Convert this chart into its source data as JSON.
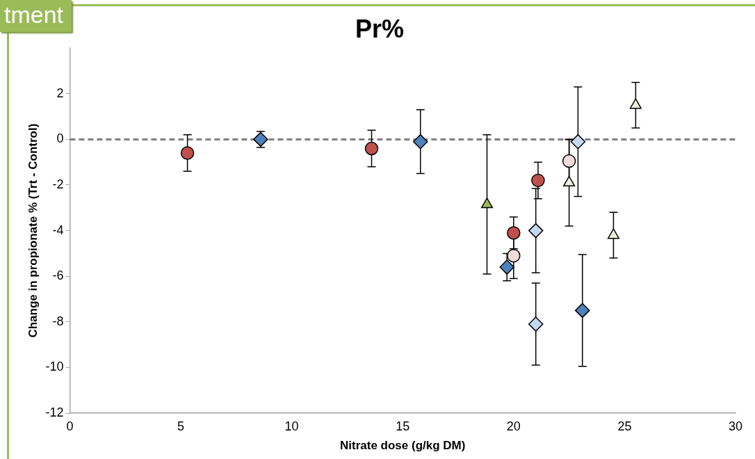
{
  "chart_data": {
    "type": "scatter",
    "title": "Pr%",
    "xlabel": "Nitrate dose (g/kg DM)",
    "ylabel": "Change in propionate % (Trt - Control)",
    "annotations": [
      "tment"
    ],
    "xlim": [
      0,
      30
    ],
    "xticks": [
      0,
      5,
      10,
      15,
      20,
      25,
      30
    ],
    "ylim": [
      -12,
      4
    ],
    "yticks": [
      -12,
      -10,
      -8,
      -6,
      -4,
      -2,
      0,
      2
    ],
    "grid": false,
    "legend": false,
    "ref_lines": [
      {
        "axis": "y",
        "value": 0,
        "color": "#808080",
        "line_style": "dashed"
      }
    ],
    "series": [
      {
        "color": "#c0504d",
        "marker": "circle",
        "x": [
          5.3,
          13.6,
          20.0,
          21.1
        ],
        "values": [
          -0.6,
          -0.4,
          -4.1,
          -1.8
        ],
        "errors": [
          0.8,
          0.8,
          0.7,
          0.8
        ]
      },
      {
        "color": "#f2dcdb",
        "marker": "circle",
        "x": [
          20.0,
          22.5
        ],
        "values": [
          -5.1,
          -0.95
        ],
        "errors": [
          1.0,
          0.95
        ]
      },
      {
        "color": "#4f81bd",
        "marker": "diamond",
        "x": [
          8.6,
          15.8,
          19.7,
          23.1
        ],
        "values": [
          0,
          -0.1,
          -5.6,
          -7.5
        ],
        "errors": [
          0.35,
          1.4,
          0.6,
          2.45
        ]
      },
      {
        "color": "#c6d9f1",
        "marker": "diamond",
        "x": [
          21.0,
          21.0,
          22.9
        ],
        "values": [
          -4.0,
          -8.1,
          -0.1
        ],
        "errors": [
          1.85,
          1.8,
          2.4
        ]
      },
      {
        "color": "#9bbb59",
        "marker": "triangle",
        "x": [
          18.8
        ],
        "values": [
          -2.85
        ],
        "errors": [
          3.05
        ]
      },
      {
        "color": "#ebf1de",
        "marker": "triangle",
        "x": [
          22.5,
          24.5,
          25.5
        ],
        "values": [
          -1.9,
          -4.2,
          1.5
        ],
        "errors": [
          1.9,
          1.0,
          1.0
        ]
      }
    ]
  }
}
